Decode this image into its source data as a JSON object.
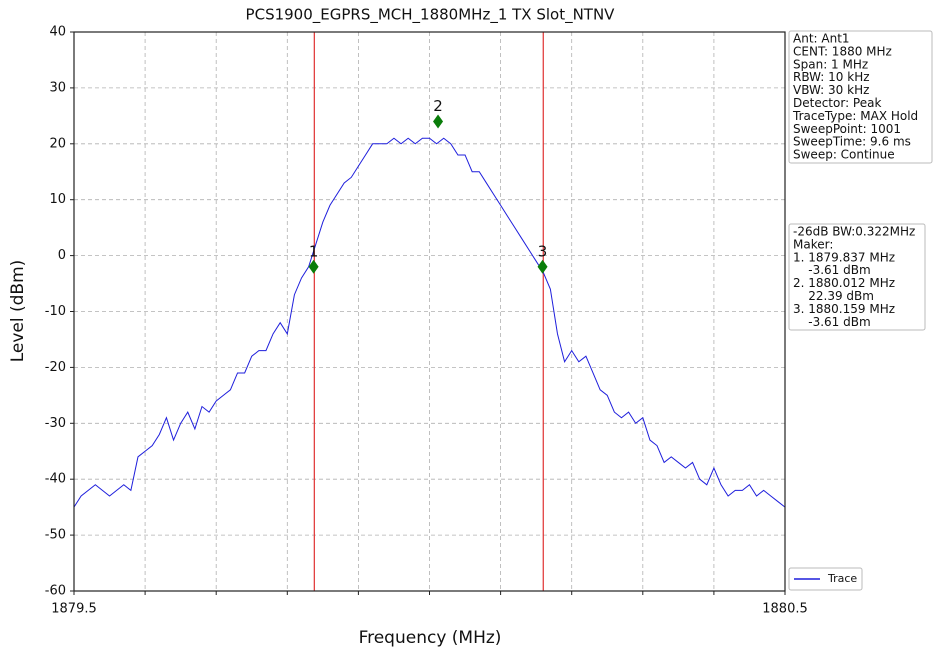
{
  "chart_data": {
    "type": "line",
    "title": "PCS1900_EGPRS_MCH_1880MHz_1 TX Slot_NTNV",
    "x_label": "Frequency (MHz)",
    "y_label": "Level (dBm)",
    "xlim": [
      1879.5,
      1880.5
    ],
    "ylim": [
      -60,
      40
    ],
    "xticks": [
      1879.5,
      {
        "value": 1879.6,
        "label": null
      },
      {
        "value": 1879.7,
        "label": null
      },
      {
        "value": 1879.8,
        "label": null
      },
      {
        "value": 1879.9,
        "label": null
      },
      {
        "value": 1880.0,
        "label": null
      },
      {
        "value": 1880.1,
        "label": null
      },
      {
        "value": 1880.2,
        "label": null
      },
      {
        "value": 1880.3,
        "label": null
      },
      {
        "value": 1880.4,
        "label": null
      },
      1880.5
    ],
    "yticks": [
      40,
      30,
      20,
      10,
      0,
      -10,
      -20,
      -30,
      -40,
      -50,
      -60
    ],
    "grid": true,
    "legend": "lower right",
    "x": [
      1879.5,
      1879.51,
      1879.52,
      1879.53,
      1879.54,
      1879.55,
      1879.56,
      1879.57,
      1879.58,
      1879.59,
      1879.6,
      1879.61,
      1879.62,
      1879.63,
      1879.64,
      1879.65,
      1879.66,
      1879.67,
      1879.68,
      1879.69,
      1879.7,
      1879.71,
      1879.72,
      1879.73,
      1879.74,
      1879.75,
      1879.76,
      1879.77,
      1879.78,
      1879.79,
      1879.8,
      1879.81,
      1879.82,
      1879.83,
      1879.84,
      1879.85,
      1879.86,
      1879.87,
      1879.88,
      1879.89,
      1879.9,
      1879.91,
      1879.92,
      1879.93,
      1879.94,
      1879.95,
      1879.96,
      1879.97,
      1879.98,
      1879.99,
      1880.0,
      1880.01,
      1880.02,
      1880.03,
      1880.04,
      1880.05,
      1880.06,
      1880.07,
      1880.08,
      1880.09,
      1880.1,
      1880.11,
      1880.12,
      1880.13,
      1880.14,
      1880.15,
      1880.16,
      1880.17,
      1880.18,
      1880.19,
      1880.2,
      1880.21,
      1880.22,
      1880.23,
      1880.24,
      1880.25,
      1880.26,
      1880.27,
      1880.28,
      1880.29,
      1880.3,
      1880.31,
      1880.32,
      1880.33,
      1880.34,
      1880.35,
      1880.36,
      1880.37,
      1880.38,
      1880.39,
      1880.4,
      1880.41,
      1880.42,
      1880.43,
      1880.44,
      1880.45,
      1880.46,
      1880.47,
      1880.48,
      1880.49,
      1880.5
    ],
    "series": [
      {
        "name": "Trace",
        "color": "#1f1fdc",
        "values": [
          -45,
          -43,
          -42,
          -41,
          -42,
          -43,
          -42,
          -41,
          -42,
          -36,
          -35,
          -34,
          -32,
          -29,
          -33,
          -30,
          -28,
          -31,
          -27,
          -28,
          -26,
          -25,
          -24,
          -21,
          -21,
          -18,
          -17,
          -17,
          -14,
          -12,
          -14,
          -7,
          -4,
          -2,
          2,
          6,
          9,
          11,
          13,
          14,
          16,
          18,
          20,
          20,
          20,
          21,
          20,
          21,
          20,
          21,
          21,
          20,
          21,
          20,
          18,
          18,
          15,
          15,
          13,
          11,
          9,
          7,
          5,
          3,
          1,
          -1,
          -3,
          -6,
          -14,
          -19,
          -17,
          -19,
          -18,
          -21,
          -24,
          -25,
          -28,
          -29,
          -28,
          -30,
          -29,
          -33,
          -34,
          -37,
          -36,
          -37,
          -38,
          -37,
          -40,
          -41,
          -38,
          -41,
          -43,
          -42,
          -42,
          -41,
          -43,
          -42,
          -43,
          -44,
          -45
        ]
      }
    ],
    "vlines": {
      "color": "#e03030",
      "x": [
        1879.838,
        1880.16
      ]
    },
    "markers": {
      "color": "#0a7d0a",
      "labels": [
        "1",
        "2",
        "3"
      ],
      "x": [
        1879.837,
        1880.012,
        1880.159
      ],
      "y": [
        -2,
        24,
        -2
      ]
    },
    "info_lines": [
      "Ant: Ant1",
      "CENT: 1880 MHz",
      "Span: 1 MHz",
      "RBW: 10 kHz",
      "VBW: 30 kHz",
      "Detector: Peak",
      "TraceType: MAX Hold",
      "SweepPoint: 1001",
      "SweepTime: 9.6 ms",
      "Sweep: Continue"
    ],
    "bw_lines": [
      "-26dB BW:0.322MHz",
      "Maker:",
      "1. 1879.837 MHz",
      "    -3.61 dBm",
      "2. 1880.012 MHz",
      "    22.39 dBm",
      "3. 1880.159 MHz",
      "    -3.61 dBm"
    ]
  }
}
